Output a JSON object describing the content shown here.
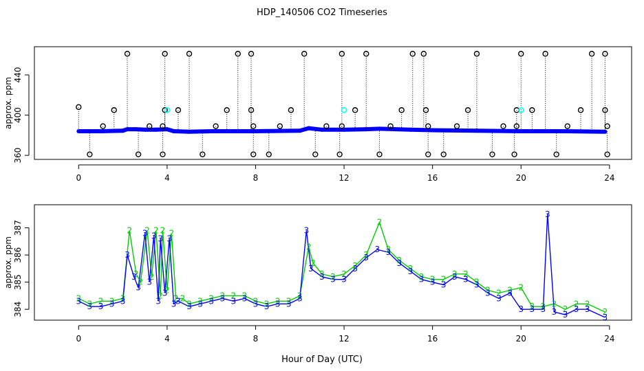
{
  "title": "HDP_140506  CO2 Timeseries",
  "xlabel": "Hour of Day (UTC)",
  "chart_data": [
    {
      "type": "scatter",
      "ylabel": "approx. ppm",
      "xlim": [
        -2,
        25
      ],
      "ylim": [
        356,
        468
      ],
      "xticks": [
        0,
        4,
        8,
        12,
        16,
        20,
        24
      ],
      "yticks": [
        360,
        400,
        440
      ],
      "baseline": [
        {
          "x": 0.0,
          "y": 384
        },
        {
          "x": 1.0,
          "y": 384
        },
        {
          "x": 2.0,
          "y": 384.5
        },
        {
          "x": 2.2,
          "y": 386
        },
        {
          "x": 2.6,
          "y": 386
        },
        {
          "x": 3.0,
          "y": 385.5
        },
        {
          "x": 3.5,
          "y": 385.5
        },
        {
          "x": 4.0,
          "y": 386
        },
        {
          "x": 4.3,
          "y": 384
        },
        {
          "x": 5.0,
          "y": 383.5
        },
        {
          "x": 6.0,
          "y": 384
        },
        {
          "x": 8.0,
          "y": 384
        },
        {
          "x": 10.0,
          "y": 384.5
        },
        {
          "x": 10.4,
          "y": 387
        },
        {
          "x": 11.0,
          "y": 385.5
        },
        {
          "x": 12.0,
          "y": 385.5
        },
        {
          "x": 13.0,
          "y": 386
        },
        {
          "x": 13.6,
          "y": 386.5
        },
        {
          "x": 15.0,
          "y": 385.5
        },
        {
          "x": 16.0,
          "y": 385
        },
        {
          "x": 18.0,
          "y": 384.5
        },
        {
          "x": 20.0,
          "y": 384
        },
        {
          "x": 22.0,
          "y": 384
        },
        {
          "x": 23.8,
          "y": 383.5
        }
      ],
      "spikes": [
        {
          "x": 0.0,
          "y": 408
        },
        {
          "x": 0.5,
          "y": 361
        },
        {
          "x": 1.1,
          "y": 389
        },
        {
          "x": 1.6,
          "y": 405
        },
        {
          "x": 2.2,
          "y": 461
        },
        {
          "x": 2.7,
          "y": 361
        },
        {
          "x": 3.2,
          "y": 389
        },
        {
          "x": 3.8,
          "y": 361
        },
        {
          "x": 3.8,
          "y": 389
        },
        {
          "x": 3.9,
          "y": 405
        },
        {
          "x": 3.9,
          "y": 461
        },
        {
          "x": 4.5,
          "y": 405
        },
        {
          "x": 5.0,
          "y": 461
        },
        {
          "x": 5.6,
          "y": 361
        },
        {
          "x": 6.2,
          "y": 389
        },
        {
          "x": 6.7,
          "y": 405
        },
        {
          "x": 7.2,
          "y": 461
        },
        {
          "x": 7.8,
          "y": 461
        },
        {
          "x": 7.8,
          "y": 405
        },
        {
          "x": 7.9,
          "y": 389
        },
        {
          "x": 7.9,
          "y": 361
        },
        {
          "x": 8.6,
          "y": 361
        },
        {
          "x": 9.1,
          "y": 389
        },
        {
          "x": 9.6,
          "y": 405
        },
        {
          "x": 10.2,
          "y": 461
        },
        {
          "x": 10.7,
          "y": 361
        },
        {
          "x": 11.2,
          "y": 389
        },
        {
          "x": 11.8,
          "y": 361
        },
        {
          "x": 11.9,
          "y": 389
        },
        {
          "x": 11.9,
          "y": 461
        },
        {
          "x": 12.5,
          "y": 405
        },
        {
          "x": 13.0,
          "y": 461
        },
        {
          "x": 13.6,
          "y": 361
        },
        {
          "x": 14.1,
          "y": 389
        },
        {
          "x": 14.6,
          "y": 405
        },
        {
          "x": 15.1,
          "y": 461
        },
        {
          "x": 15.6,
          "y": 461
        },
        {
          "x": 15.7,
          "y": 405
        },
        {
          "x": 15.8,
          "y": 389
        },
        {
          "x": 15.8,
          "y": 361
        },
        {
          "x": 16.5,
          "y": 361
        },
        {
          "x": 17.1,
          "y": 389
        },
        {
          "x": 17.6,
          "y": 405
        },
        {
          "x": 18.0,
          "y": 461
        },
        {
          "x": 18.7,
          "y": 361
        },
        {
          "x": 19.2,
          "y": 389
        },
        {
          "x": 19.7,
          "y": 361
        },
        {
          "x": 19.8,
          "y": 389
        },
        {
          "x": 19.8,
          "y": 405
        },
        {
          "x": 20.0,
          "y": 461
        },
        {
          "x": 20.5,
          "y": 405
        },
        {
          "x": 21.1,
          "y": 461
        },
        {
          "x": 21.6,
          "y": 361
        },
        {
          "x": 22.1,
          "y": 389
        },
        {
          "x": 22.7,
          "y": 405
        },
        {
          "x": 23.2,
          "y": 461
        },
        {
          "x": 23.8,
          "y": 461
        },
        {
          "x": 23.8,
          "y": 405
        },
        {
          "x": 23.9,
          "y": 389
        },
        {
          "x": 23.9,
          "y": 361
        }
      ],
      "highlights": [
        {
          "x": 4.0,
          "y": 405
        },
        {
          "x": 12.0,
          "y": 405
        },
        {
          "x": 20.0,
          "y": 405
        }
      ],
      "colors": {
        "baseline": "#0000ff",
        "spikes": "#000000",
        "highlights": "#00ffff"
      }
    },
    {
      "type": "line",
      "ylabel": "approx. ppm",
      "xlim": [
        -2,
        25
      ],
      "ylim": [
        383.6,
        387.85
      ],
      "xticks": [
        0,
        4,
        8,
        12,
        16,
        20,
        24
      ],
      "yticks": [
        384,
        385,
        386,
        387
      ],
      "series": [
        {
          "marker": "3",
          "color": "#0000ff",
          "x": [
            0.0,
            0.5,
            1.0,
            1.5,
            2.0,
            2.2,
            2.5,
            2.7,
            3.0,
            3.2,
            3.4,
            3.6,
            3.7,
            3.9,
            4.1,
            4.3,
            4.5,
            5.0,
            5.5,
            6.0,
            6.5,
            7.0,
            7.5,
            8.0,
            8.5,
            9.0,
            9.5,
            10.0,
            10.3,
            10.5,
            11.0,
            11.5,
            12.0,
            12.5,
            13.0,
            13.5,
            14.0,
            14.5,
            15.0,
            15.5,
            16.0,
            16.5,
            17.0,
            17.5,
            18.0,
            18.5,
            19.0,
            19.5,
            20.0,
            20.5,
            21.0,
            21.2,
            21.5,
            22.0,
            22.5,
            23.0,
            23.8
          ],
          "y": [
            384.3,
            384.1,
            384.1,
            384.2,
            384.3,
            386.0,
            385.2,
            384.8,
            386.8,
            385.0,
            386.7,
            384.3,
            386.6,
            384.6,
            386.6,
            384.2,
            384.3,
            384.1,
            384.2,
            384.3,
            384.4,
            384.3,
            384.4,
            384.2,
            384.1,
            384.2,
            384.2,
            384.4,
            386.9,
            385.5,
            385.2,
            385.1,
            385.1,
            385.5,
            385.9,
            386.2,
            386.1,
            385.7,
            385.4,
            385.1,
            385.0,
            384.9,
            385.2,
            385.1,
            384.9,
            384.6,
            384.4,
            384.6,
            384.0,
            384.0,
            384.0,
            387.5,
            383.9,
            383.8,
            384.0,
            384.0,
            383.7
          ]
        },
        {
          "marker": "2",
          "color": "#00cc00",
          "x": [
            0.0,
            0.5,
            1.0,
            1.5,
            2.0,
            2.3,
            2.6,
            2.8,
            3.1,
            3.3,
            3.5,
            3.7,
            3.8,
            4.0,
            4.2,
            4.4,
            4.7,
            5.0,
            5.5,
            6.0,
            6.5,
            7.0,
            7.5,
            8.0,
            8.5,
            9.0,
            9.5,
            10.0,
            10.4,
            10.6,
            11.0,
            11.5,
            12.0,
            12.5,
            13.0,
            13.6,
            14.0,
            14.5,
            15.0,
            15.5,
            16.0,
            16.5,
            17.0,
            17.5,
            18.0,
            18.5,
            19.0,
            19.5,
            20.0,
            20.5,
            21.0,
            21.5,
            22.0,
            22.5,
            23.0,
            23.8
          ],
          "y": [
            384.4,
            384.2,
            384.3,
            384.3,
            384.4,
            386.9,
            385.3,
            385.0,
            386.9,
            385.2,
            386.9,
            384.5,
            386.9,
            384.7,
            386.8,
            384.4,
            384.4,
            384.2,
            384.3,
            384.4,
            384.5,
            384.5,
            384.5,
            384.3,
            384.2,
            384.3,
            384.3,
            384.5,
            386.3,
            385.7,
            385.3,
            385.2,
            385.3,
            385.6,
            386.0,
            387.2,
            386.2,
            385.8,
            385.5,
            385.2,
            385.1,
            385.1,
            385.3,
            385.3,
            385.0,
            384.7,
            384.6,
            384.7,
            384.8,
            384.1,
            384.1,
            384.2,
            384.0,
            384.2,
            384.2,
            383.9
          ]
        }
      ]
    }
  ]
}
